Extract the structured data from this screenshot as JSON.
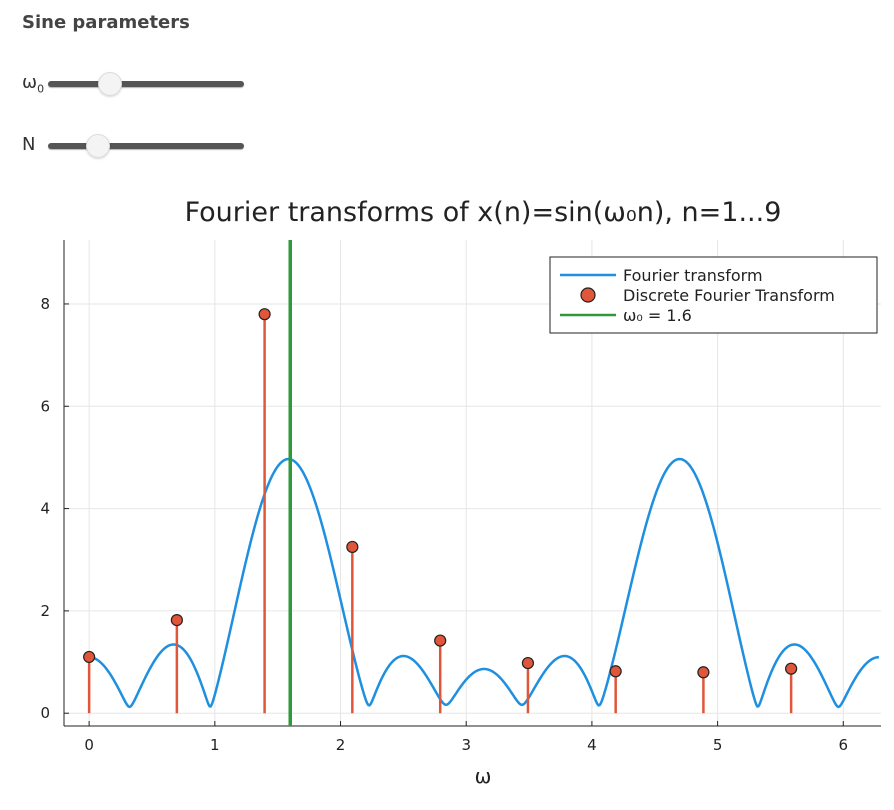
{
  "controls": {
    "title": "Sine parameters",
    "sliders": [
      {
        "label": "ω",
        "sub": "0",
        "value_fraction": 0.29
      },
      {
        "label": "N",
        "sub": "",
        "value_fraction": 0.22
      }
    ]
  },
  "chart_data": {
    "type": "line",
    "title": "Fourier transforms of x(n)=sin(ω₀n), n=1...9",
    "xlabel": "ω",
    "ylabel": "",
    "xlim": [
      -0.2,
      6.3
    ],
    "ylim": [
      -0.25,
      9.25
    ],
    "xticks": [
      0,
      1,
      2,
      3,
      4,
      5,
      6
    ],
    "yticks": [
      0,
      2,
      4,
      6,
      8
    ],
    "grid": true,
    "legend_position": "top-right",
    "omega0": 1.6,
    "N": 9,
    "series": [
      {
        "name": "Fourier transform",
        "kind": "line",
        "color": "#1f8fe0"
      },
      {
        "name": "Discrete Fourier Transform",
        "kind": "stem",
        "color": "#e0563a",
        "x": [
          0,
          0.698,
          1.396,
          2.094,
          2.793,
          3.491,
          4.189,
          4.887,
          5.585
        ],
        "y": [
          1.1,
          1.82,
          7.8,
          3.25,
          1.42,
          0.98,
          0.82,
          0.8,
          0.87
        ]
      },
      {
        "name": "ω₀ = 1.6",
        "kind": "vline",
        "color": "#2e9a3a",
        "x": 1.6
      }
    ]
  }
}
